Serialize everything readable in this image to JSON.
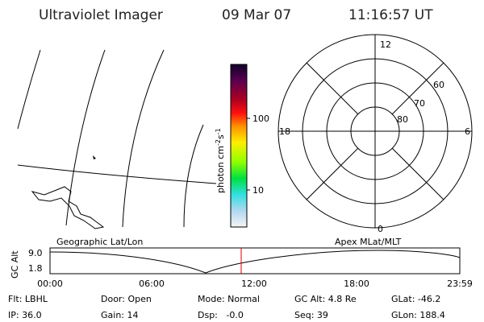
{
  "header": {
    "title": "Ultraviolet Imager",
    "date": "09 Mar 07",
    "time": "11:16:57 UT"
  },
  "colorbar": {
    "unit": {
      "base": "photon cm",
      "exp1": "-2",
      "mid": "s",
      "exp2": "-1"
    },
    "ticks": [
      "100",
      "10"
    ]
  },
  "polar": {
    "mlt_labels": [
      "12",
      "18",
      "6",
      "0"
    ],
    "mlat_labels": [
      "60",
      "70",
      "80"
    ]
  },
  "orbit": {
    "left_label": "Geographic Lat/Lon",
    "right_label": "Apex MLat/MLT",
    "y_label": "GC Alt",
    "y_ticks": [
      "9.0",
      "1.8"
    ],
    "x_ticks": [
      "00:00",
      "06:00",
      "12:00",
      "18:00",
      "23:59"
    ]
  },
  "footer": {
    "rows": [
      [
        "Flt: LBHL",
        "Door: Open",
        "Mode: Normal",
        "GC Alt: 4.8 Re",
        "GLat: -46.2"
      ],
      [
        "IP: 36.0",
        "Gain: 14",
        "Dsp:   -0.0",
        "Seq: 39",
        "GLon: 188.4"
      ]
    ]
  }
}
